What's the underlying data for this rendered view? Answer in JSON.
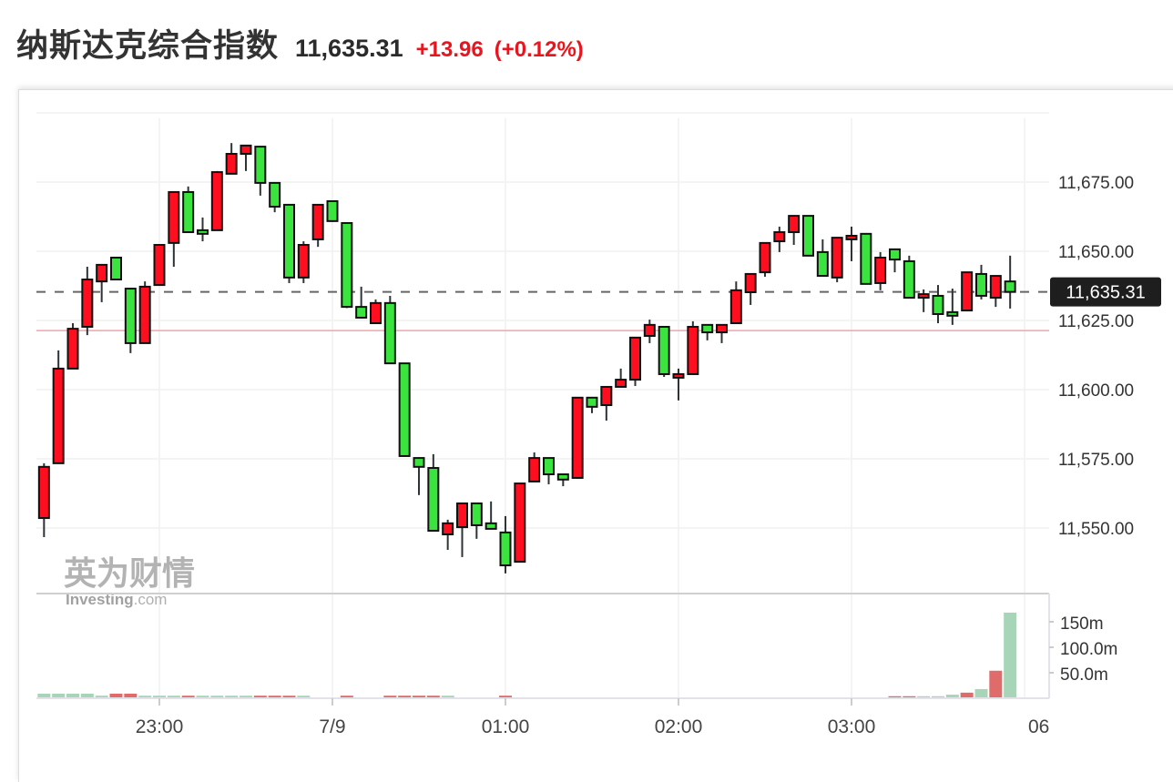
{
  "header": {
    "title": "纳斯达克综合指数",
    "price": "11,635.31",
    "change": "+13.96",
    "change_pct": "(+0.12%)"
  },
  "watermark": {
    "cn": "英为财情",
    "brand": "Investing",
    "suffix": ".com"
  },
  "colors": {
    "up": "#ff0e1f",
    "down": "#3be33f",
    "change_text": "#e8141e",
    "vol_up": "#e06b6b",
    "vol_down": "#a7d5b8",
    "prev_close_line": "#f3a3ab",
    "price_label_bg": "#1e1e1e"
  },
  "chart_data": {
    "type": "candlestick",
    "interval": "5min",
    "current_price": 11635.31,
    "current_price_label": "11,635.31",
    "previous_close": 11621.35,
    "ylim": [
      11525,
      11697
    ],
    "y_ticks": [
      {
        "value": 11675,
        "label": "11,675.00"
      },
      {
        "value": 11650,
        "label": "11,650.00"
      },
      {
        "value": 11625,
        "label": "11,625.00"
      },
      {
        "value": 11600,
        "label": "11,600.00"
      },
      {
        "value": 11575,
        "label": "11,575.00"
      },
      {
        "value": 11550,
        "label": "11,550.00"
      }
    ],
    "x_ticks": [
      {
        "time": "23:00",
        "label": "23:00"
      },
      {
        "time": "00:00",
        "label": "7/9"
      },
      {
        "time": "01:00",
        "label": "01:00"
      },
      {
        "time": "02:00",
        "label": "02:00"
      },
      {
        "time": "03:00",
        "label": "03:00"
      },
      {
        "time": "04:00",
        "label": "06"
      }
    ],
    "volume_ticks": [
      {
        "value": 150,
        "label": "150m"
      },
      {
        "value": 100,
        "label": "100.0m"
      },
      {
        "value": 50,
        "label": "50.0m"
      }
    ],
    "grid": true,
    "candles": [
      [
        "22:20",
        11553.6,
        11573.4,
        11546.7,
        11572.1
      ],
      [
        "22:25",
        11573.4,
        11614.2,
        11573.4,
        11607.6
      ],
      [
        "22:30",
        11607.6,
        11624.0,
        11607.6,
        11622.0
      ],
      [
        "22:35",
        11622.7,
        11644.4,
        11619.7,
        11639.8
      ],
      [
        "22:40",
        11639.1,
        11645.1,
        11631.6,
        11645.1
      ],
      [
        "22:45",
        11647.7,
        11648.0,
        11639.5,
        11639.8
      ],
      [
        "22:50",
        11636.5,
        11636.5,
        11613.2,
        11616.8
      ],
      [
        "22:55",
        11616.8,
        11639.1,
        11616.8,
        11637.2
      ],
      [
        "23:00",
        11637.8,
        11652.3,
        11637.8,
        11652.3
      ],
      [
        "23:05",
        11653.0,
        11671.4,
        11644.4,
        11671.4
      ],
      [
        "23:10",
        11671.4,
        11673.4,
        11656.9,
        11656.9
      ],
      [
        "23:15",
        11657.6,
        11662.2,
        11653.6,
        11656.3
      ],
      [
        "23:20",
        11657.6,
        11679.0,
        11657.6,
        11678.6
      ],
      [
        "23:25",
        11678.0,
        11689.1,
        11678.0,
        11685.2
      ],
      [
        "23:30",
        11685.2,
        11688.2,
        11679.0,
        11688.2
      ],
      [
        "23:35",
        11687.8,
        11688.0,
        11670.1,
        11674.7
      ],
      [
        "23:40",
        11674.7,
        11675.0,
        11664.1,
        11666.1
      ],
      [
        "23:45",
        11666.8,
        11666.8,
        11638.5,
        11640.5
      ],
      [
        "23:50",
        11640.5,
        11653.6,
        11638.5,
        11652.3
      ],
      [
        "23:55",
        11654.3,
        11666.8,
        11651.6,
        11666.8
      ],
      [
        "00:00",
        11668.1,
        11668.4,
        11660.6,
        11660.9
      ],
      [
        "00:05",
        11660.2,
        11660.2,
        11629.5,
        11629.9
      ],
      [
        "00:10",
        11629.9,
        11637.2,
        11625.7,
        11626.0
      ],
      [
        "00:15",
        11624.0,
        11632.6,
        11624.0,
        11631.3
      ],
      [
        "00:20",
        11631.3,
        11633.9,
        11609.2,
        11609.5
      ],
      [
        "00:25",
        11609.5,
        11609.5,
        11575.7,
        11576.0
      ],
      [
        "00:30",
        11575.3,
        11575.6,
        11561.9,
        11572.1
      ],
      [
        "00:35",
        11571.7,
        11576.7,
        11549.0,
        11549.0
      ],
      [
        "00:40",
        11547.7,
        11553.0,
        11542.1,
        11551.7
      ],
      [
        "00:45",
        11550.3,
        11558.9,
        11539.5,
        11558.9
      ],
      [
        "00:50",
        11558.9,
        11558.9,
        11546.1,
        11551.0
      ],
      [
        "00:55",
        11551.7,
        11559.6,
        11549.5,
        11549.7
      ],
      [
        "01:00",
        11548.4,
        11554.3,
        11533.6,
        11536.5
      ],
      [
        "01:05",
        11537.8,
        11566.4,
        11537.8,
        11566.1
      ],
      [
        "01:10",
        11566.8,
        11577.3,
        11566.8,
        11575.3
      ],
      [
        "01:15",
        11575.3,
        11575.3,
        11565.8,
        11569.4
      ],
      [
        "01:20",
        11569.4,
        11569.4,
        11565.1,
        11567.5
      ],
      [
        "01:25",
        11568.1,
        11597.1,
        11567.8,
        11597.1
      ],
      [
        "01:30",
        11597.1,
        11597.1,
        11591.5,
        11593.8
      ],
      [
        "01:35",
        11594.4,
        11601.0,
        11588.8,
        11601.0
      ],
      [
        "01:40",
        11601.0,
        11607.6,
        11601.0,
        11603.6
      ],
      [
        "01:45",
        11603.6,
        11618.8,
        11601.3,
        11618.8
      ],
      [
        "01:50",
        11619.4,
        11625.3,
        11616.8,
        11623.4
      ],
      [
        "01:55",
        11622.7,
        11622.7,
        11604.6,
        11605.6
      ],
      [
        "02:00",
        11604.3,
        11607.6,
        11596.1,
        11605.6
      ],
      [
        "02:05",
        11605.6,
        11624.7,
        11605.6,
        11622.7
      ],
      [
        "02:10",
        11623.4,
        11623.4,
        11617.8,
        11620.7
      ],
      [
        "02:15",
        11620.7,
        11623.4,
        11616.8,
        11623.4
      ],
      [
        "02:20",
        11624.0,
        11639.1,
        11624.0,
        11635.9
      ],
      [
        "02:25",
        11635.2,
        11641.8,
        11630.6,
        11641.8
      ],
      [
        "02:30",
        11642.4,
        11653.0,
        11640.8,
        11653.0
      ],
      [
        "02:35",
        11653.6,
        11658.9,
        11649.7,
        11656.9
      ],
      [
        "02:40",
        11656.9,
        11662.8,
        11652.3,
        11662.8
      ],
      [
        "02:45",
        11662.8,
        11662.8,
        11648.4,
        11648.4
      ],
      [
        "02:50",
        11649.7,
        11654.3,
        11641.1,
        11641.1
      ],
      [
        "02:55",
        11640.5,
        11654.9,
        11638.8,
        11654.9
      ],
      [
        "03:00",
        11654.3,
        11658.9,
        11646.4,
        11655.6
      ],
      [
        "03:05",
        11656.3,
        11656.6,
        11638.2,
        11638.2
      ],
      [
        "03:10",
        11638.5,
        11649.7,
        11635.9,
        11647.7
      ],
      [
        "03:15",
        11650.7,
        11650.7,
        11642.4,
        11647.0
      ],
      [
        "03:20",
        11646.4,
        11648.4,
        11633.2,
        11633.2
      ],
      [
        "03:25",
        11633.2,
        11636.2,
        11628.0,
        11634.5
      ],
      [
        "03:30",
        11633.9,
        11637.8,
        11624.0,
        11627.3
      ],
      [
        "03:35",
        11628.0,
        11636.5,
        11623.4,
        11626.7
      ],
      [
        "03:40",
        11628.6,
        11642.4,
        11628.6,
        11642.4
      ],
      [
        "03:45",
        11641.8,
        11645.1,
        11632.6,
        11633.9
      ],
      [
        "03:50",
        11633.2,
        11641.1,
        11629.9,
        11641.1
      ],
      [
        "03:55",
        11639.1,
        11648.4,
        11629.3,
        11635.31
      ]
    ],
    "volume_m": [
      9,
      9,
      9,
      9,
      5,
      9,
      9,
      5,
      5,
      5,
      5,
      5,
      5,
      5,
      5,
      5,
      5,
      5,
      5,
      1.5,
      1.5,
      5,
      1.5,
      1.5,
      5,
      5,
      5,
      5,
      5,
      1.5,
      1.5,
      1.5,
      5,
      1.5,
      1.5,
      1.5,
      1.5,
      1.5,
      1.5,
      1.5,
      1.5,
      1.5,
      1.5,
      1.5,
      1.5,
      1.5,
      1.5,
      1.5,
      1.5,
      1.5,
      1.5,
      1.5,
      1.5,
      1.5,
      1.5,
      1.5,
      1.5,
      1.5,
      1.5,
      4,
      4,
      4,
      4,
      7,
      11,
      18,
      54,
      168
    ],
    "volume_dir": [
      "d",
      "d",
      "d",
      "d",
      "d",
      "u",
      "u",
      "d",
      "d",
      "d",
      "u",
      "d",
      "d",
      "d",
      "d",
      "u",
      "u",
      "u",
      "d",
      "d",
      "u",
      "u",
      "u",
      "d",
      "u",
      "u",
      "u",
      "u",
      "d",
      "d",
      "u",
      "u",
      "u",
      "d",
      "d",
      "u",
      "u",
      "d",
      "u",
      "d",
      "d",
      "d",
      "u",
      "d",
      "d",
      "u",
      "d",
      "u",
      "d",
      "d",
      "d",
      "u",
      "u",
      "d",
      "d",
      "u",
      "d",
      "d",
      "u",
      "u",
      "u",
      "d",
      "d",
      "d",
      "u",
      "d",
      "u",
      "d"
    ]
  }
}
